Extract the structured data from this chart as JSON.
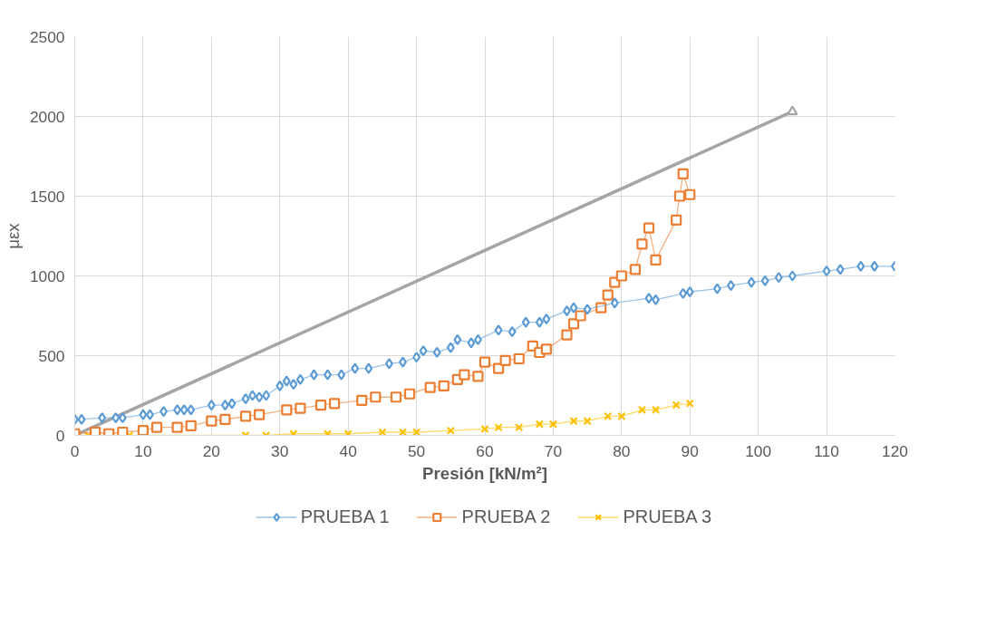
{
  "chart_data": {
    "type": "line",
    "xlabel": "Presión [kN/m²]",
    "ylabel": "μεx",
    "xlim": [
      0,
      120
    ],
    "ylim": [
      0,
      2500
    ],
    "xticks": [
      0,
      10,
      20,
      30,
      40,
      50,
      60,
      70,
      80,
      90,
      100,
      110,
      120
    ],
    "yticks": [
      0,
      500,
      1000,
      1500,
      2000,
      2500
    ],
    "grid": true,
    "legend": "bottom",
    "series": [
      {
        "name": "PRUEBA 1",
        "color": "#5b9bd5",
        "marker": "diamond",
        "x": [
          0,
          1,
          4,
          6,
          7,
          10,
          11,
          13,
          15,
          16,
          17,
          20,
          22,
          23,
          25,
          26,
          27,
          28,
          30,
          31,
          32,
          33,
          35,
          37,
          39,
          41,
          43,
          46,
          48,
          50,
          51,
          53,
          55,
          56,
          58,
          59,
          62,
          64,
          66,
          68,
          69,
          72,
          73,
          75,
          79,
          84,
          85,
          89,
          90,
          94,
          96,
          99,
          101,
          103,
          105,
          110,
          112,
          115,
          117,
          120
        ],
        "values": [
          100,
          100,
          110,
          110,
          110,
          130,
          130,
          150,
          160,
          160,
          160,
          190,
          190,
          200,
          230,
          250,
          240,
          250,
          310,
          340,
          320,
          350,
          380,
          380,
          380,
          420,
          420,
          450,
          460,
          490,
          530,
          520,
          550,
          600,
          580,
          600,
          660,
          650,
          710,
          710,
          730,
          780,
          800,
          790,
          830,
          860,
          850,
          890,
          900,
          920,
          940,
          960,
          970,
          990,
          1000,
          1030,
          1040,
          1060,
          1060,
          1060
        ]
      },
      {
        "name": "PRUEBA 2",
        "color": "#ed7d31",
        "marker": "square",
        "x": [
          0,
          3,
          5,
          7,
          10,
          12,
          15,
          17,
          20,
          22,
          25,
          27,
          31,
          33,
          36,
          38,
          42,
          44,
          47,
          49,
          52,
          54,
          56,
          57,
          59,
          60,
          62,
          63,
          65,
          67,
          68,
          69,
          72,
          73,
          74,
          77,
          78,
          79,
          80,
          82,
          83,
          84,
          85,
          88,
          88.5,
          89,
          90
        ],
        "values": [
          10,
          20,
          10,
          20,
          30,
          50,
          50,
          60,
          90,
          100,
          120,
          130,
          160,
          170,
          190,
          200,
          220,
          240,
          240,
          260,
          300,
          310,
          350,
          380,
          370,
          460,
          420,
          470,
          480,
          560,
          520,
          540,
          630,
          700,
          750,
          800,
          880,
          960,
          1000,
          1040,
          1200,
          1300,
          1100,
          1350,
          1500,
          1640,
          1510
        ]
      },
      {
        "name": "PRUEBA 3",
        "color": "#ffc000",
        "marker": "cross",
        "x": [
          0,
          2,
          5,
          8,
          10,
          25,
          28,
          32,
          37,
          40,
          45,
          48,
          50,
          55,
          60,
          62,
          65,
          68,
          70,
          73,
          75,
          78,
          80,
          83,
          85,
          88,
          90
        ],
        "values": [
          0,
          0,
          0,
          0,
          0,
          0,
          0,
          10,
          10,
          10,
          20,
          20,
          20,
          30,
          40,
          50,
          50,
          70,
          70,
          90,
          90,
          120,
          120,
          160,
          160,
          190,
          200
        ]
      },
      {
        "color": "#a5a5a5",
        "marker": "triangle",
        "x": [
          0,
          105
        ],
        "values": [
          0,
          2030
        ]
      }
    ]
  }
}
